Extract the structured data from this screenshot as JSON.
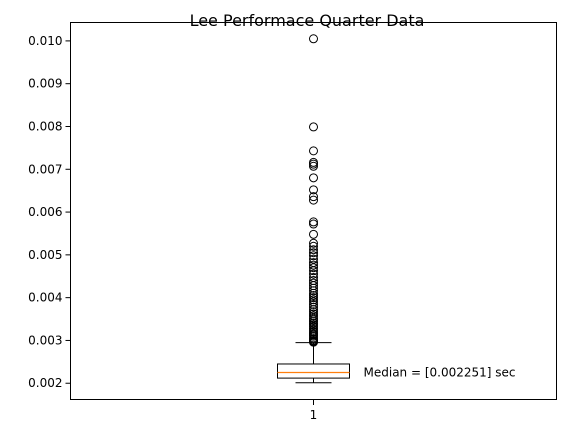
{
  "chart_data": {
    "type": "box",
    "title": "Lee Performace Quarter Data",
    "xlabel": "",
    "ylabel": "",
    "categories": [
      "1"
    ],
    "ylim": [
      0.00162,
      0.01043
    ],
    "yticks": [
      0.002,
      0.003,
      0.004,
      0.005,
      0.006,
      0.007,
      0.008,
      0.009,
      0.01
    ],
    "ytick_labels": [
      "0.002",
      "0.003",
      "0.004",
      "0.005",
      "0.006",
      "0.007",
      "0.008",
      "0.009",
      "0.010"
    ],
    "grid": false,
    "box": {
      "whisker_low": 0.00201,
      "q1": 0.00212,
      "median": 0.002251,
      "q3": 0.00245,
      "whisker_high": 0.00295
    },
    "outliers": [
      0.00296,
      0.00298,
      0.003,
      0.00303,
      0.00306,
      0.0031,
      0.00313,
      0.00316,
      0.0032,
      0.00324,
      0.00328,
      0.00332,
      0.00336,
      0.0034,
      0.00344,
      0.00348,
      0.00352,
      0.00357,
      0.00362,
      0.00367,
      0.00372,
      0.00378,
      0.00384,
      0.0039,
      0.00395,
      0.004,
      0.00405,
      0.0041,
      0.00416,
      0.00422,
      0.00428,
      0.00434,
      0.0044,
      0.00447,
      0.00455,
      0.00463,
      0.0047,
      0.00476,
      0.00482,
      0.0049,
      0.00498,
      0.00505,
      0.00512,
      0.0052,
      0.00527,
      0.00548,
      0.00572,
      0.00577,
      0.00628,
      0.00636,
      0.00652,
      0.0068,
      0.00707,
      0.00712,
      0.00716,
      0.00743,
      0.00799,
      0.01005
    ],
    "annotation": "Median = [0.002251] sec",
    "colors": {
      "box": "#000000",
      "median": "#ff7f0e",
      "outlier": "#000000"
    }
  }
}
